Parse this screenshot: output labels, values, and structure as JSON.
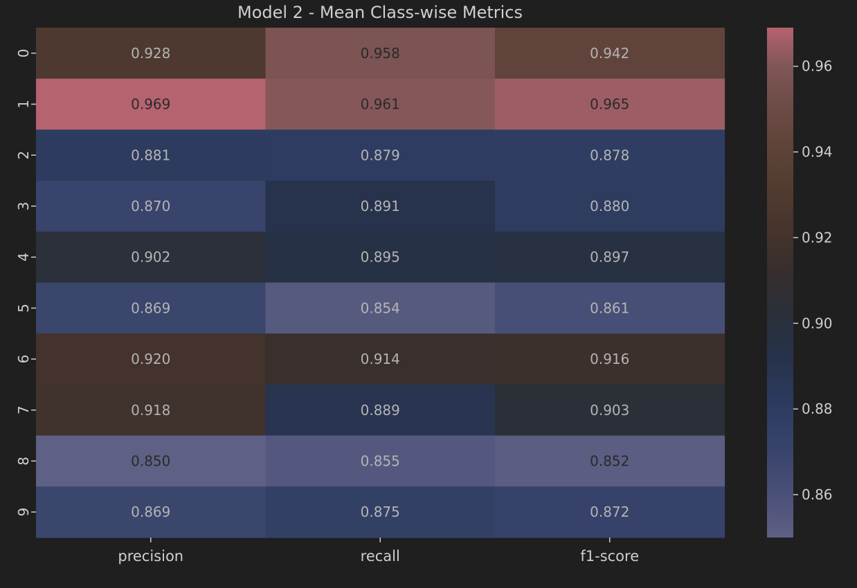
{
  "chart_data": {
    "type": "heatmap",
    "title": "Model 2 - Mean Class-wise Metrics",
    "xlabel": "",
    "ylabel": "",
    "columns": [
      "precision",
      "recall",
      "f1-score"
    ],
    "rows": [
      "0",
      "1",
      "2",
      "3",
      "4",
      "5",
      "6",
      "7",
      "8",
      "9"
    ],
    "values": [
      [
        0.928,
        0.958,
        0.942
      ],
      [
        0.969,
        0.961,
        0.965
      ],
      [
        0.881,
        0.879,
        0.878
      ],
      [
        0.87,
        0.891,
        0.88
      ],
      [
        0.902,
        0.895,
        0.897
      ],
      [
        0.869,
        0.854,
        0.861
      ],
      [
        0.92,
        0.914,
        0.916
      ],
      [
        0.918,
        0.889,
        0.903
      ],
      [
        0.85,
        0.855,
        0.852
      ],
      [
        0.869,
        0.875,
        0.872
      ]
    ],
    "cell_labels": [
      [
        "0.928",
        "0.958",
        "0.942"
      ],
      [
        "0.969",
        "0.961",
        "0.965"
      ],
      [
        "0.881",
        "0.879",
        "0.878"
      ],
      [
        "0.870",
        "0.891",
        "0.880"
      ],
      [
        "0.902",
        "0.895",
        "0.897"
      ],
      [
        "0.869",
        "0.854",
        "0.861"
      ],
      [
        "0.920",
        "0.914",
        "0.916"
      ],
      [
        "0.918",
        "0.889",
        "0.903"
      ],
      [
        "0.850",
        "0.855",
        "0.852"
      ],
      [
        "0.869",
        "0.875",
        "0.872"
      ]
    ],
    "colorbar": {
      "range": [
        0.85,
        0.969
      ],
      "ticks": [
        0.86,
        0.88,
        0.9,
        0.92,
        0.94,
        0.96
      ],
      "tick_labels": [
        "0.86",
        "0.88",
        "0.90",
        "0.92",
        "0.94",
        "0.96"
      ],
      "colormap": [
        {
          "v": 0.85,
          "color": "#5f6085"
        },
        {
          "v": 0.86,
          "color": "#4a5077"
        },
        {
          "v": 0.872,
          "color": "#36426a"
        },
        {
          "v": 0.882,
          "color": "#2c3a5e"
        },
        {
          "v": 0.892,
          "color": "#26324a"
        },
        {
          "v": 0.903,
          "color": "#2b3038"
        },
        {
          "v": 0.912,
          "color": "#362e2d"
        },
        {
          "v": 0.922,
          "color": "#46342c"
        },
        {
          "v": 0.936,
          "color": "#573f34"
        },
        {
          "v": 0.95,
          "color": "#6b4b45"
        },
        {
          "v": 0.96,
          "color": "#7f5656"
        },
        {
          "v": 0.969,
          "color": "#b5636f"
        }
      ]
    },
    "grid": false,
    "legend": "colorbar-right",
    "colors": {
      "background": "#1f1f1f",
      "text": "#cfcfcf",
      "label_light": "#b4b4b4",
      "label_dark": "#2a2a2a"
    }
  }
}
